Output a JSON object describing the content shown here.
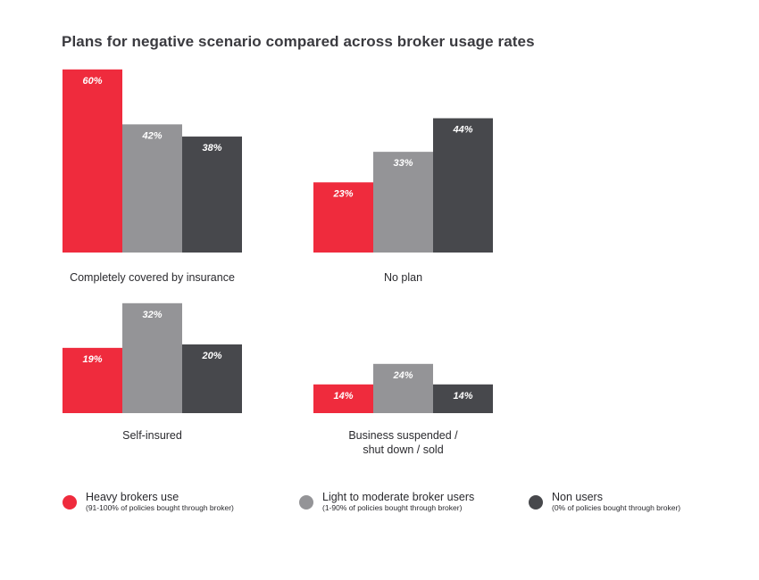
{
  "title": "Plans for negative scenario compared across broker usage rates",
  "colors": {
    "heavy": "#ef2b3d",
    "light": "#949497",
    "non": "#47484c"
  },
  "legend": [
    {
      "key": "heavy",
      "name": "Heavy brokers use",
      "sub": "(91-100% of policies bought through broker)"
    },
    {
      "key": "light",
      "name": "Light to moderate broker users",
      "sub": "(1-90% of policies bought through broker)"
    },
    {
      "key": "non",
      "name": "Non users",
      "sub": "(0% of policies bought through broker)"
    }
  ],
  "chart_data": [
    {
      "type": "bar",
      "category": "Completely covered by insurance",
      "unit": "%",
      "series": [
        {
          "name": "Heavy brokers use",
          "value": 60
        },
        {
          "name": "Light to moderate broker users",
          "value": 42
        },
        {
          "name": "Non users",
          "value": 38
        }
      ]
    },
    {
      "type": "bar",
      "category": "No plan",
      "unit": "%",
      "series": [
        {
          "name": "Heavy brokers use",
          "value": 23
        },
        {
          "name": "Light to moderate broker users",
          "value": 33
        },
        {
          "name": "Non users",
          "value": 44
        }
      ]
    },
    {
      "type": "bar",
      "category": "Self-insured",
      "unit": "%",
      "series": [
        {
          "name": "Heavy brokers use",
          "value": 19
        },
        {
          "name": "Light to moderate broker users",
          "value": 32
        },
        {
          "name": "Non users",
          "value": 20
        }
      ]
    },
    {
      "type": "bar",
      "category": "Business suspended / shut down / sold",
      "category_lines": [
        "Business suspended /",
        "shut down / sold"
      ],
      "unit": "%",
      "series": [
        {
          "name": "Heavy brokers use",
          "value": 14
        },
        {
          "name": "Light to moderate broker users",
          "value": 24
        },
        {
          "name": "Non users",
          "value": 14
        }
      ]
    }
  ]
}
